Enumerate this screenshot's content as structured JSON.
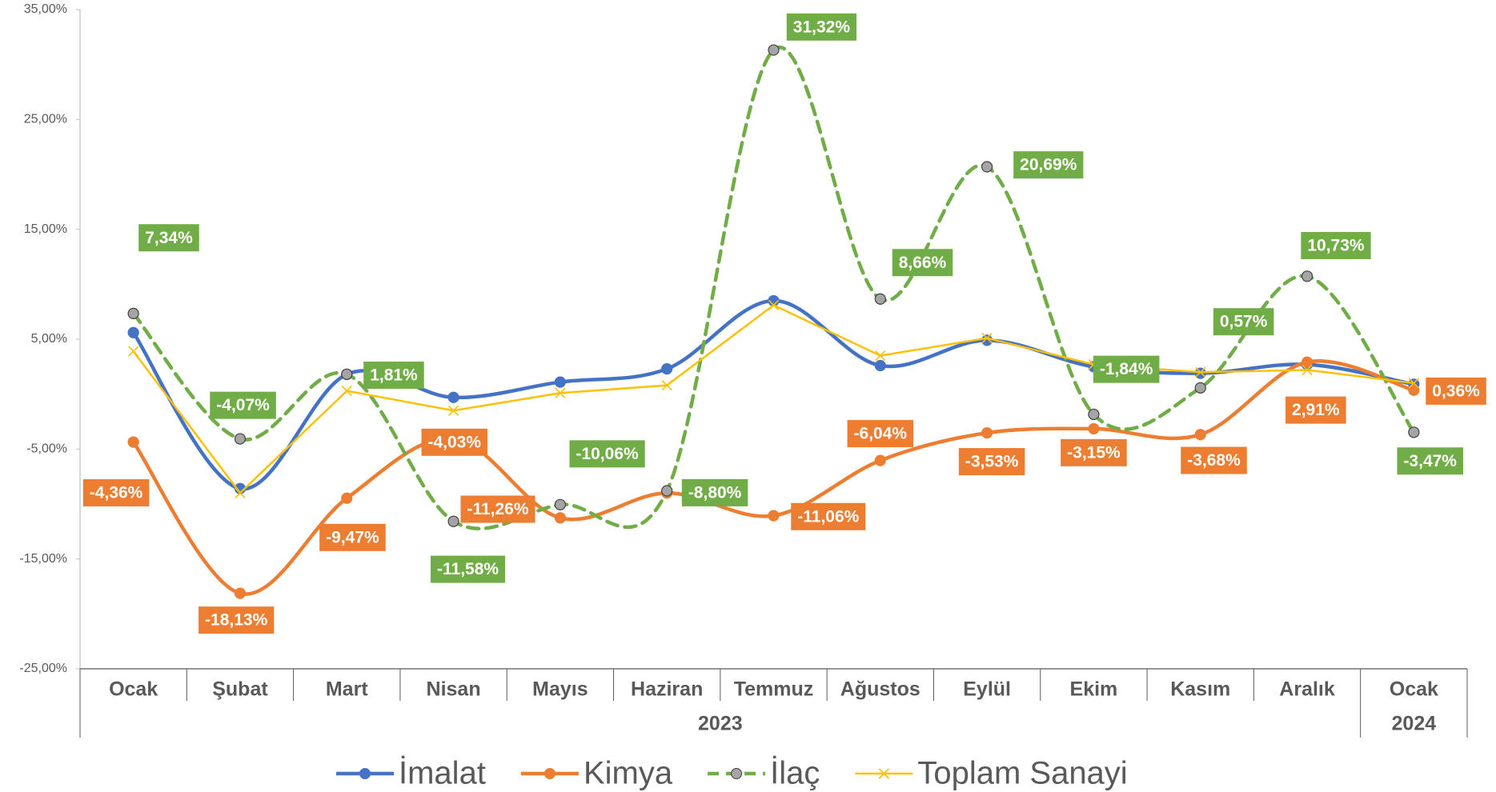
{
  "chart_data": {
    "type": "line",
    "categories": [
      "Ocak",
      "Şubat",
      "Mart",
      "Nisan",
      "Mayıs",
      "Haziran",
      "Temmuz",
      "Ağustos",
      "Eylül",
      "Ekim",
      "Kasım",
      "Aralık",
      "Ocak"
    ],
    "category_groups": [
      "2023",
      "2024"
    ],
    "ylim": [
      -25,
      35
    ],
    "yticks": [
      {
        "value": -25,
        "label": "-25,00%"
      },
      {
        "value": -15,
        "label": "-15,00%"
      },
      {
        "value": -5,
        "label": "-5,00%"
      },
      {
        "value": 5,
        "label": "5,00%"
      },
      {
        "value": 15,
        "label": "15,00%"
      },
      {
        "value": 25,
        "label": "25,00%"
      },
      {
        "value": 35,
        "label": "35,00%"
      }
    ],
    "grid": false,
    "legend": "bottom",
    "series": [
      {
        "name": "İmalat",
        "color": "#4472c4",
        "smooth": true,
        "marker": "circle",
        "marker_color": "#4472c4",
        "values": [
          5.6,
          -8.6,
          1.8,
          -0.3,
          1.1,
          2.3,
          8.5,
          2.6,
          4.9,
          2.5,
          1.9,
          2.7,
          0.9
        ]
      },
      {
        "name": "Kimya",
        "color": "#ed7d31",
        "smooth": true,
        "marker": "circle",
        "marker_color": "#ed7d31",
        "values": [
          -4.36,
          -18.13,
          -9.47,
          -4.03,
          -11.26,
          -9.0,
          -11.06,
          -6.04,
          -3.53,
          -3.15,
          -3.68,
          2.91,
          0.36
        ],
        "value_labels": [
          "-4,36%",
          "-18,13%",
          "-9,47%",
          "-4,03%",
          "-11,26%",
          null,
          "-11,06%",
          "-6,04%",
          "-3,53%",
          "-3,15%",
          "-3,68%",
          "2,91%",
          "0,36%"
        ]
      },
      {
        "name": "İlaç",
        "color": "#70ad47",
        "smooth": true,
        "dashed": true,
        "marker": "circle",
        "marker_color": "#a5a5a5",
        "values": [
          7.34,
          -4.07,
          1.81,
          -11.58,
          -10.06,
          -8.8,
          31.32,
          8.66,
          20.69,
          -1.84,
          0.57,
          10.73,
          -3.47
        ],
        "value_labels": [
          "7,34%",
          "-4,07%",
          "1,81%",
          "-11,58%",
          "-10,06%",
          "-8,80%",
          "31,32%",
          "8,66%",
          "20,69%",
          "-1,84%",
          "0,57%",
          "10,73%",
          "-3,47%"
        ]
      },
      {
        "name": "Toplam Sanayi",
        "color": "#ffc000",
        "smooth": false,
        "marker": "x",
        "marker_color": "#ffc000",
        "values": [
          3.9,
          -9.0,
          0.3,
          -1.5,
          0.1,
          0.8,
          8.1,
          3.5,
          5.1,
          2.7,
          2.0,
          2.2,
          1.0
        ]
      }
    ]
  }
}
